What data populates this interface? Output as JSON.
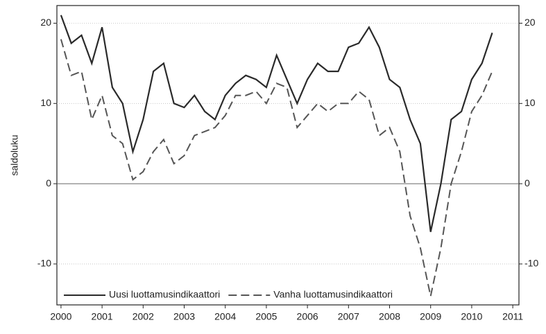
{
  "chart_data": {
    "type": "line",
    "y_label": "saldoluku",
    "x": [
      2000,
      2000.25,
      2000.5,
      2000.75,
      2001,
      2001.25,
      2001.5,
      2001.75,
      2002,
      2002.25,
      2002.5,
      2002.75,
      2003,
      2003.25,
      2003.5,
      2003.75,
      2004,
      2004.25,
      2004.5,
      2004.75,
      2005,
      2005.25,
      2005.5,
      2005.75,
      2006,
      2006.25,
      2006.5,
      2006.75,
      2007,
      2007.25,
      2007.5,
      2007.75,
      2008,
      2008.25,
      2008.5,
      2008.75,
      2009,
      2009.25,
      2009.5,
      2009.75,
      2010,
      2010.25,
      2010.5
    ],
    "series": [
      {
        "name": "Uusi luottamusindikaattori",
        "color": "#2a2a2a",
        "dash": false,
        "values": [
          21,
          17.5,
          18.5,
          15,
          19.5,
          12,
          10,
          4,
          8,
          14,
          15,
          10,
          9.5,
          11,
          9,
          8,
          11,
          12.5,
          13.5,
          13,
          12,
          16,
          13,
          10,
          13,
          15,
          14,
          14,
          17,
          17.5,
          19.5,
          17,
          13,
          12,
          8,
          5,
          -6,
          0,
          8,
          9,
          13,
          15,
          18.8
        ]
      },
      {
        "name": "Vanha luottamusindikaattori",
        "color": "#555555",
        "dash": true,
        "values": [
          18,
          13.5,
          14,
          8,
          11,
          6,
          5,
          0.5,
          1.5,
          4,
          5.5,
          2.5,
          3.5,
          6,
          6.5,
          7,
          8.5,
          11,
          11,
          11.5,
          10,
          12.5,
          12,
          7,
          8.5,
          10,
          9,
          10,
          10,
          11.5,
          10.5,
          6,
          7,
          4,
          -4,
          -8,
          -14,
          -8,
          0,
          4,
          9,
          11,
          14
        ]
      }
    ],
    "xlim": [
      1999.9,
      2011.15
    ],
    "xticks": [
      2000,
      2001,
      2002,
      2003,
      2004,
      2005,
      2006,
      2007,
      2008,
      2009,
      2010,
      2011
    ],
    "ylim": [
      -15.1,
      22.2
    ],
    "yticks": [
      -10,
      0,
      10,
      20
    ],
    "grid": true,
    "legend": "lower left"
  }
}
